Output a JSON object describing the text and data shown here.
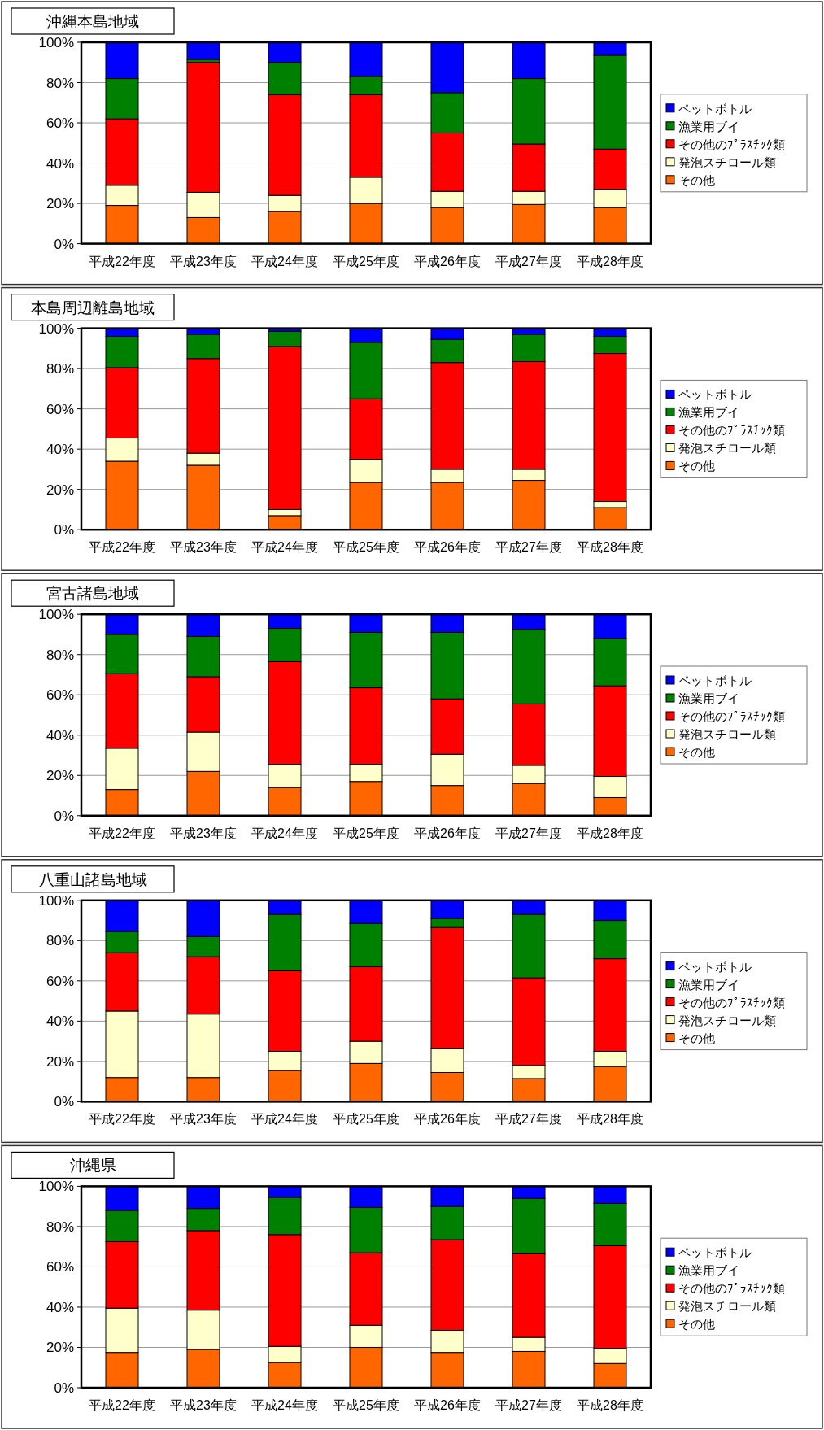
{
  "chart_data": [
    {
      "type": "bar",
      "stacked": true,
      "title": "沖縄本島地域",
      "categories": [
        "平成22年度",
        "平成23年度",
        "平成24年度",
        "平成25年度",
        "平成26年度",
        "平成27年度",
        "平成28年度"
      ],
      "ylim": [
        0,
        100
      ],
      "yticks": [
        {
          "value": 0,
          "label": "0%"
        },
        {
          "value": 20,
          "label": "20%"
        },
        {
          "value": 40,
          "label": "40%"
        },
        {
          "value": 60,
          "label": "60%"
        },
        {
          "value": 80,
          "label": "80%"
        },
        {
          "value": 100,
          "label": "100%"
        }
      ],
      "grid": "y",
      "legend": "right",
      "series": [
        {
          "name": "その他",
          "color": "#ff6600",
          "values": [
            19,
            13,
            16,
            20,
            18,
            19.5,
            18
          ]
        },
        {
          "name": "発泡スチロール類",
          "color": "#ffffcc",
          "values": [
            10,
            12.5,
            8,
            13,
            8,
            6.5,
            9
          ]
        },
        {
          "name": "その他のﾌﾟﾗｽﾁｯｸ類",
          "color": "#ff0000",
          "values": [
            33,
            64.5,
            50,
            41,
            29,
            23.5,
            20
          ]
        },
        {
          "name": "漁業用ブイ",
          "color": "#008000",
          "values": [
            20,
            1.5,
            16,
            9,
            20,
            32.5,
            46.5
          ]
        },
        {
          "name": "ペットボトル",
          "color": "#0000ff",
          "values": [
            18,
            8.5,
            10,
            17,
            25,
            18,
            6.5
          ]
        }
      ]
    },
    {
      "type": "bar",
      "stacked": true,
      "title": "本島周辺離島地域",
      "categories": [
        "平成22年度",
        "平成23年度",
        "平成24年度",
        "平成25年度",
        "平成26年度",
        "平成27年度",
        "平成28年度"
      ],
      "ylim": [
        0,
        100
      ],
      "yticks": [
        {
          "value": 0,
          "label": "0%"
        },
        {
          "value": 20,
          "label": "20%"
        },
        {
          "value": 40,
          "label": "40%"
        },
        {
          "value": 60,
          "label": "60%"
        },
        {
          "value": 80,
          "label": "80%"
        },
        {
          "value": 100,
          "label": "100%"
        }
      ],
      "grid": "y",
      "legend": "right",
      "series": [
        {
          "name": "その他",
          "color": "#ff6600",
          "values": [
            34,
            32,
            7,
            23.5,
            23.5,
            24.5,
            11
          ]
        },
        {
          "name": "発泡スチロール類",
          "color": "#ffffcc",
          "values": [
            11.5,
            6,
            3,
            11.5,
            6.5,
            5.5,
            3
          ]
        },
        {
          "name": "その他のﾌﾟﾗｽﾁｯｸ類",
          "color": "#ff0000",
          "values": [
            35,
            47,
            81,
            30,
            53,
            53.5,
            73.5
          ]
        },
        {
          "name": "漁業用ブイ",
          "color": "#008000",
          "values": [
            15.5,
            12,
            7.5,
            28,
            11.5,
            13.5,
            8.5
          ]
        },
        {
          "name": "ペットボトル",
          "color": "#0000ff",
          "values": [
            4,
            3,
            1.5,
            7,
            5.5,
            3,
            4
          ]
        }
      ]
    },
    {
      "type": "bar",
      "stacked": true,
      "title": "宮古諸島地域",
      "categories": [
        "平成22年度",
        "平成23年度",
        "平成24年度",
        "平成25年度",
        "平成26年度",
        "平成27年度",
        "平成28年度"
      ],
      "ylim": [
        0,
        100
      ],
      "yticks": [
        {
          "value": 0,
          "label": "0%"
        },
        {
          "value": 20,
          "label": "20%"
        },
        {
          "value": 40,
          "label": "40%"
        },
        {
          "value": 60,
          "label": "60%"
        },
        {
          "value": 80,
          "label": "80%"
        },
        {
          "value": 100,
          "label": "100%"
        }
      ],
      "grid": "y",
      "legend": "right",
      "series": [
        {
          "name": "その他",
          "color": "#ff6600",
          "values": [
            13,
            22,
            14,
            17,
            15,
            16,
            9
          ]
        },
        {
          "name": "発泡スチロール類",
          "color": "#ffffcc",
          "values": [
            20.5,
            19.5,
            11.5,
            8.5,
            15.5,
            9,
            10.5
          ]
        },
        {
          "name": "その他のﾌﾟﾗｽﾁｯｸ類",
          "color": "#ff0000",
          "values": [
            37,
            27.5,
            51,
            38,
            27.5,
            30.5,
            45
          ]
        },
        {
          "name": "漁業用ブイ",
          "color": "#008000",
          "values": [
            19.5,
            20,
            16.5,
            27.5,
            33,
            37,
            23.5
          ]
        },
        {
          "name": "ペットボトル",
          "color": "#0000ff",
          "values": [
            10,
            11,
            7,
            9,
            9,
            7.5,
            12
          ]
        }
      ]
    },
    {
      "type": "bar",
      "stacked": true,
      "title": "八重山諸島地域",
      "categories": [
        "平成22年度",
        "平成23年度",
        "平成24年度",
        "平成25年度",
        "平成26年度",
        "平成27年度",
        "平成28年度"
      ],
      "ylim": [
        0,
        100
      ],
      "yticks": [
        {
          "value": 0,
          "label": "0%"
        },
        {
          "value": 20,
          "label": "20%"
        },
        {
          "value": 40,
          "label": "40%"
        },
        {
          "value": 60,
          "label": "60%"
        },
        {
          "value": 80,
          "label": "80%"
        },
        {
          "value": 100,
          "label": "100%"
        }
      ],
      "grid": "y",
      "legend": "right",
      "series": [
        {
          "name": "その他",
          "color": "#ff6600",
          "values": [
            12,
            12,
            15.5,
            19,
            14.5,
            11.5,
            17.5
          ]
        },
        {
          "name": "発泡スチロール類",
          "color": "#ffffcc",
          "values": [
            33,
            31.5,
            9.5,
            11,
            12,
            6.5,
            7.5
          ]
        },
        {
          "name": "その他のﾌﾟﾗｽﾁｯｸ類",
          "color": "#ff0000",
          "values": [
            29,
            28.5,
            40,
            37,
            60,
            43.5,
            46
          ]
        },
        {
          "name": "漁業用ブイ",
          "color": "#008000",
          "values": [
            10.5,
            10,
            28,
            21.5,
            4.5,
            31.5,
            19
          ]
        },
        {
          "name": "ペットボトル",
          "color": "#0000ff",
          "values": [
            15.5,
            18,
            7,
            11.5,
            9,
            7,
            10
          ]
        }
      ]
    },
    {
      "type": "bar",
      "stacked": true,
      "title": "沖縄県",
      "categories": [
        "平成22年度",
        "平成23年度",
        "平成24年度",
        "平成25年度",
        "平成26年度",
        "平成27年度",
        "平成28年度"
      ],
      "ylim": [
        0,
        100
      ],
      "yticks": [
        {
          "value": 0,
          "label": "0%"
        },
        {
          "value": 20,
          "label": "20%"
        },
        {
          "value": 40,
          "label": "40%"
        },
        {
          "value": 60,
          "label": "60%"
        },
        {
          "value": 80,
          "label": "80%"
        },
        {
          "value": 100,
          "label": "100%"
        }
      ],
      "grid": "y",
      "legend": "right",
      "series": [
        {
          "name": "その他",
          "color": "#ff6600",
          "values": [
            17.5,
            19,
            12.5,
            20,
            17.5,
            18,
            12
          ]
        },
        {
          "name": "発泡スチロール類",
          "color": "#ffffcc",
          "values": [
            22,
            19.5,
            8,
            11,
            11,
            7,
            7.5
          ]
        },
        {
          "name": "その他のﾌﾟﾗｽﾁｯｸ類",
          "color": "#ff0000",
          "values": [
            33,
            39.5,
            55.5,
            36,
            45,
            41.5,
            51
          ]
        },
        {
          "name": "漁業用ブイ",
          "color": "#008000",
          "values": [
            15.5,
            11,
            18.5,
            22.5,
            16.5,
            27.5,
            21
          ]
        },
        {
          "name": "ペットボトル",
          "color": "#0000ff",
          "values": [
            12,
            11,
            5.5,
            10.5,
            10,
            6,
            8.5
          ]
        }
      ]
    }
  ]
}
